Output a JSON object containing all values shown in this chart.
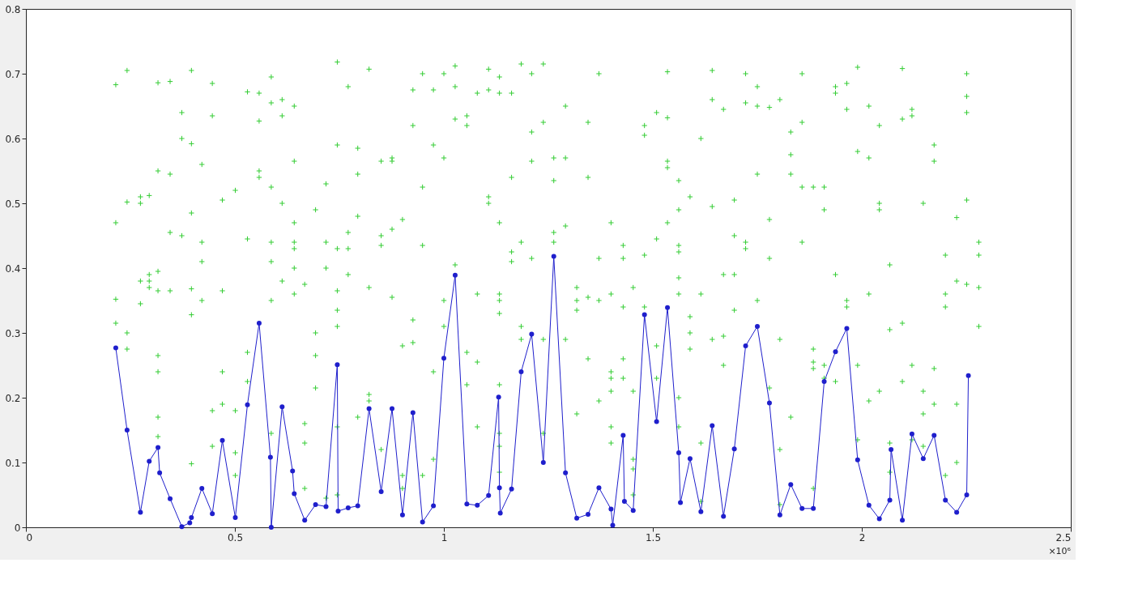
{
  "chart_data": {
    "type": "scatter",
    "xlim": [
      0,
      2.5
    ],
    "xticks": [
      0,
      0.5,
      1,
      1.5,
      2,
      2.5
    ],
    "ylim": [
      0,
      0.8
    ],
    "yticks": [
      0,
      0.1,
      0.2,
      0.3,
      0.4,
      0.5,
      0.6,
      0.7,
      0.8
    ],
    "grid": false,
    "annotations": [
      "×10⁶"
    ],
    "series": [
      {
        "marker": "cross",
        "color": "#33cc33",
        "x": [
          0.215,
          0.215,
          0.215,
          0.215,
          0.242,
          0.242,
          0.242,
          0.242,
          0.274,
          0.274,
          0.274,
          0.274,
          0.295,
          0.295,
          0.295,
          0.295,
          0.316,
          0.316,
          0.316,
          0.316,
          0.316,
          0.316,
          0.316,
          0.316,
          0.345,
          0.345,
          0.345,
          0.345,
          0.373,
          0.373,
          0.373,
          0.396,
          0.396,
          0.396,
          0.396,
          0.396,
          0.396,
          0.421,
          0.421,
          0.421,
          0.421,
          0.446,
          0.446,
          0.446,
          0.446,
          0.47,
          0.47,
          0.47,
          0.47,
          0.501,
          0.501,
          0.501,
          0.501,
          0.53,
          0.53,
          0.53,
          0.53,
          0.558,
          0.558,
          0.558,
          0.558,
          0.587,
          0.587,
          0.587,
          0.587,
          0.587,
          0.587,
          0.587,
          0.613,
          0.613,
          0.613,
          0.613,
          0.642,
          0.642,
          0.642,
          0.642,
          0.642,
          0.642,
          0.642,
          0.667,
          0.667,
          0.667,
          0.667,
          0.693,
          0.693,
          0.693,
          0.693,
          0.718,
          0.718,
          0.718,
          0.718,
          0.745,
          0.745,
          0.745,
          0.745,
          0.745,
          0.745,
          0.745,
          0.745,
          0.771,
          0.771,
          0.771,
          0.771,
          0.794,
          0.794,
          0.794,
          0.794,
          0.821,
          0.821,
          0.821,
          0.821,
          0.85,
          0.85,
          0.85,
          0.85,
          0.876,
          0.876,
          0.876,
          0.876,
          0.901,
          0.901,
          0.901,
          0.901,
          0.926,
          0.926,
          0.926,
          0.926,
          0.949,
          0.949,
          0.949,
          0.949,
          0.975,
          0.975,
          0.975,
          0.975,
          1.0,
          1.0,
          1.0,
          1.0,
          1.027,
          1.027,
          1.027,
          1.027,
          1.055,
          1.055,
          1.055,
          1.055,
          1.08,
          1.08,
          1.08,
          1.08,
          1.107,
          1.107,
          1.107,
          1.107,
          1.133,
          1.133,
          1.133,
          1.133,
          1.133,
          1.133,
          1.133,
          1.133,
          1.133,
          1.133,
          1.162,
          1.162,
          1.162,
          1.162,
          1.185,
          1.185,
          1.185,
          1.185,
          1.21,
          1.21,
          1.21,
          1.21,
          1.238,
          1.238,
          1.238,
          1.238,
          1.263,
          1.263,
          1.263,
          1.263,
          1.291,
          1.291,
          1.291,
          1.291,
          1.318,
          1.318,
          1.318,
          1.318,
          1.345,
          1.345,
          1.345,
          1.345,
          1.371,
          1.371,
          1.371,
          1.371,
          1.4,
          1.4,
          1.4,
          1.4,
          1.4,
          1.4,
          1.4,
          1.429,
          1.429,
          1.429,
          1.429,
          1.429,
          1.453,
          1.453,
          1.453,
          1.453,
          1.453,
          1.48,
          1.48,
          1.48,
          1.48,
          1.509,
          1.509,
          1.509,
          1.509,
          1.535,
          1.535,
          1.535,
          1.535,
          1.535,
          1.562,
          1.562,
          1.562,
          1.562,
          1.562,
          1.562,
          1.562,
          1.562,
          1.589,
          1.589,
          1.589,
          1.589,
          1.615,
          1.615,
          1.615,
          1.615,
          1.642,
          1.642,
          1.642,
          1.642,
          1.669,
          1.669,
          1.669,
          1.669,
          1.695,
          1.695,
          1.695,
          1.695,
          1.722,
          1.722,
          1.722,
          1.722,
          1.75,
          1.75,
          1.75,
          1.75,
          1.779,
          1.779,
          1.779,
          1.779,
          1.804,
          1.804,
          1.804,
          1.804,
          1.83,
          1.83,
          1.83,
          1.83,
          1.857,
          1.857,
          1.857,
          1.857,
          1.884,
          1.884,
          1.884,
          1.884,
          1.884,
          1.91,
          1.91,
          1.91,
          1.91,
          1.937,
          1.937,
          1.937,
          1.937,
          1.964,
          1.964,
          1.964,
          1.964,
          1.99,
          1.99,
          1.99,
          1.99,
          2.017,
          2.017,
          2.017,
          2.017,
          2.042,
          2.042,
          2.042,
          2.042,
          2.067,
          2.067,
          2.067,
          2.067,
          2.097,
          2.097,
          2.097,
          2.097,
          2.12,
          2.12,
          2.12,
          2.12,
          2.147,
          2.147,
          2.147,
          2.147,
          2.173,
          2.173,
          2.173,
          2.173,
          2.2,
          2.2,
          2.2,
          2.2,
          2.227,
          2.227,
          2.227,
          2.227,
          2.251,
          2.251,
          2.251,
          2.251,
          2.251,
          2.28,
          2.28,
          2.28,
          2.28
        ],
        "values": [
          0.683,
          0.47,
          0.352,
          0.315,
          0.705,
          0.502,
          0.3,
          0.275,
          0.51,
          0.5,
          0.38,
          0.345,
          0.512,
          0.39,
          0.38,
          0.37,
          0.686,
          0.55,
          0.395,
          0.365,
          0.265,
          0.24,
          0.17,
          0.14,
          0.688,
          0.545,
          0.455,
          0.365,
          0.64,
          0.6,
          0.45,
          0.705,
          0.592,
          0.485,
          0.368,
          0.328,
          0.098,
          0.56,
          0.44,
          0.41,
          0.35,
          0.685,
          0.635,
          0.18,
          0.125,
          0.505,
          0.365,
          0.24,
          0.19,
          0.52,
          0.18,
          0.115,
          0.08,
          0.672,
          0.445,
          0.27,
          0.225,
          0.67,
          0.627,
          0.55,
          0.54,
          0.695,
          0.655,
          0.525,
          0.44,
          0.41,
          0.35,
          0.145,
          0.66,
          0.635,
          0.5,
          0.38,
          0.65,
          0.565,
          0.47,
          0.44,
          0.43,
          0.36,
          0.4,
          0.375,
          0.16,
          0.13,
          0.06,
          0.49,
          0.3,
          0.265,
          0.215,
          0.53,
          0.44,
          0.4,
          0.045,
          0.718,
          0.59,
          0.43,
          0.365,
          0.335,
          0.31,
          0.155,
          0.05,
          0.68,
          0.455,
          0.43,
          0.39,
          0.585,
          0.545,
          0.48,
          0.17,
          0.707,
          0.37,
          0.205,
          0.195,
          0.565,
          0.45,
          0.435,
          0.12,
          0.57,
          0.565,
          0.46,
          0.355,
          0.475,
          0.28,
          0.08,
          0.06,
          0.675,
          0.62,
          0.32,
          0.285,
          0.7,
          0.525,
          0.435,
          0.08,
          0.675,
          0.59,
          0.24,
          0.105,
          0.7,
          0.57,
          0.35,
          0.31,
          0.712,
          0.68,
          0.63,
          0.405,
          0.635,
          0.62,
          0.27,
          0.22,
          0.67,
          0.36,
          0.255,
          0.155,
          0.707,
          0.675,
          0.51,
          0.5,
          0.695,
          0.67,
          0.47,
          0.36,
          0.35,
          0.33,
          0.22,
          0.145,
          0.125,
          0.085,
          0.67,
          0.54,
          0.425,
          0.41,
          0.715,
          0.44,
          0.31,
          0.29,
          0.7,
          0.61,
          0.565,
          0.415,
          0.715,
          0.625,
          0.29,
          0.145,
          0.57,
          0.535,
          0.455,
          0.44,
          0.65,
          0.57,
          0.465,
          0.29,
          0.37,
          0.35,
          0.335,
          0.175,
          0.625,
          0.54,
          0.355,
          0.26,
          0.7,
          0.415,
          0.35,
          0.195,
          0.47,
          0.36,
          0.24,
          0.23,
          0.21,
          0.155,
          0.13,
          0.435,
          0.415,
          0.34,
          0.26,
          0.23,
          0.37,
          0.21,
          0.105,
          0.09,
          0.05,
          0.62,
          0.605,
          0.42,
          0.34,
          0.64,
          0.445,
          0.28,
          0.23,
          0.703,
          0.632,
          0.565,
          0.555,
          0.47,
          0.535,
          0.49,
          0.435,
          0.425,
          0.385,
          0.36,
          0.2,
          0.155,
          0.51,
          0.325,
          0.3,
          0.275,
          0.6,
          0.36,
          0.13,
          0.04,
          0.705,
          0.66,
          0.495,
          0.29,
          0.645,
          0.39,
          0.295,
          0.25,
          0.505,
          0.45,
          0.39,
          0.335,
          0.7,
          0.655,
          0.44,
          0.43,
          0.68,
          0.65,
          0.545,
          0.35,
          0.648,
          0.475,
          0.415,
          0.215,
          0.66,
          0.29,
          0.12,
          0.035,
          0.61,
          0.575,
          0.545,
          0.17,
          0.7,
          0.625,
          0.525,
          0.44,
          0.525,
          0.275,
          0.255,
          0.245,
          0.06,
          0.525,
          0.49,
          0.25,
          0.23,
          0.68,
          0.67,
          0.39,
          0.225,
          0.685,
          0.645,
          0.35,
          0.34,
          0.71,
          0.58,
          0.25,
          0.135,
          0.65,
          0.57,
          0.36,
          0.195,
          0.62,
          0.5,
          0.49,
          0.21,
          0.405,
          0.305,
          0.13,
          0.085,
          0.708,
          0.63,
          0.315,
          0.225,
          0.645,
          0.635,
          0.25,
          0.135,
          0.5,
          0.21,
          0.175,
          0.125,
          0.59,
          0.565,
          0.245,
          0.19,
          0.42,
          0.36,
          0.34,
          0.08,
          0.478,
          0.38,
          0.19,
          0.1,
          0.7,
          0.665,
          0.64,
          0.505,
          0.375,
          0.44,
          0.42,
          0.37,
          0.31
        ]
      },
      {
        "type": "line",
        "marker": "circle",
        "line_style": "solid",
        "color": "#1f1fcc",
        "x": [
          0.215,
          0.242,
          0.274,
          0.295,
          0.316,
          0.32,
          0.345,
          0.373,
          0.392,
          0.396,
          0.421,
          0.446,
          0.47,
          0.501,
          0.53,
          0.558,
          0.585,
          0.587,
          0.613,
          0.638,
          0.642,
          0.667,
          0.693,
          0.718,
          0.745,
          0.747,
          0.771,
          0.794,
          0.821,
          0.85,
          0.876,
          0.901,
          0.926,
          0.949,
          0.975,
          1.0,
          1.027,
          1.055,
          1.08,
          1.107,
          1.131,
          1.133,
          1.135,
          1.162,
          1.185,
          1.21,
          1.238,
          1.263,
          1.291,
          1.318,
          1.345,
          1.371,
          1.4,
          1.404,
          1.429,
          1.432,
          1.453,
          1.48,
          1.509,
          1.535,
          1.562,
          1.566,
          1.589,
          1.615,
          1.642,
          1.669,
          1.695,
          1.722,
          1.75,
          1.779,
          1.804,
          1.83,
          1.857,
          1.884,
          1.91,
          1.937,
          1.964,
          1.99,
          2.017,
          2.042,
          2.067,
          2.07,
          2.097,
          2.12,
          2.147,
          2.173,
          2.2,
          2.227,
          2.251,
          2.255
        ],
        "values": [
          0.277,
          0.15,
          0.023,
          0.102,
          0.123,
          0.084,
          0.044,
          0.001,
          0.007,
          0.015,
          0.06,
          0.021,
          0.134,
          0.015,
          0.189,
          0.315,
          0.108,
          0.0,
          0.186,
          0.087,
          0.052,
          0.011,
          0.035,
          0.032,
          0.251,
          0.025,
          0.03,
          0.033,
          0.183,
          0.055,
          0.183,
          0.019,
          0.177,
          0.008,
          0.033,
          0.261,
          0.389,
          0.036,
          0.034,
          0.049,
          0.201,
          0.061,
          0.022,
          0.059,
          0.24,
          0.298,
          0.1,
          0.418,
          0.084,
          0.014,
          0.02,
          0.061,
          0.028,
          0.003,
          0.142,
          0.04,
          0.026,
          0.328,
          0.163,
          0.339,
          0.115,
          0.038,
          0.106,
          0.024,
          0.157,
          0.017,
          0.121,
          0.28,
          0.31,
          0.192,
          0.019,
          0.066,
          0.029,
          0.029,
          0.225,
          0.271,
          0.307,
          0.104,
          0.034,
          0.013,
          0.042,
          0.12,
          0.011,
          0.144,
          0.106,
          0.142,
          0.042,
          0.023,
          0.05,
          0.234
        ]
      }
    ]
  }
}
